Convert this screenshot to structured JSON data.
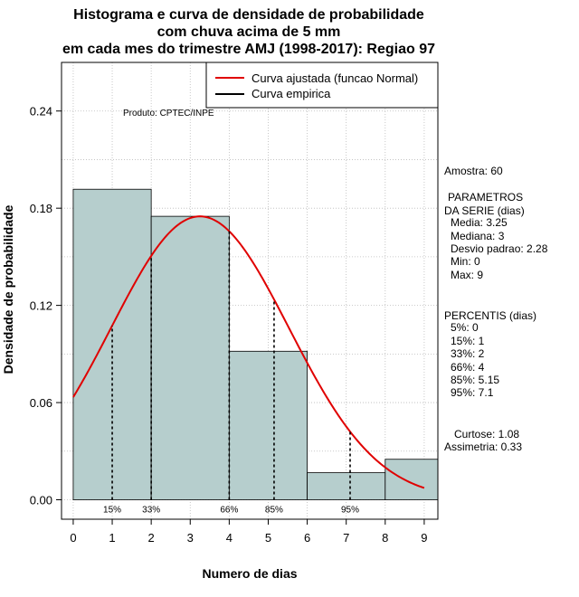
{
  "title_lines": [
    "Histograma e curva de densidade de probabilidade",
    "com chuva acima de 5 mm",
    "em cada mes do trimestre AMJ (1998-2017): Regiao 97"
  ],
  "product_label": "Produto: CPTEC/INPE",
  "legend": {
    "fitted_label": "Curva ajustada (funcao Normal)",
    "empirical_label": "Curva empirica"
  },
  "stats": {
    "amostra": "Amostra: 60",
    "params_title_1": "PARAMETROS",
    "params_title_2": "DA SERIE (dias)",
    "params": [
      "Media: 3.25",
      "Mediana: 3",
      "Desvio padrao: 2.28",
      "Min: 0",
      "Max: 9"
    ],
    "perc_title": "PERCENTIS (dias)",
    "percentis": [
      "5%: 0",
      "15%: 1",
      "33%: 2",
      "66%: 4",
      "85%: 5.15",
      "95%: 7.1"
    ],
    "curtose": "Curtose: 1.08",
    "assimetria": "Assimetria: 0.33"
  },
  "colors": {
    "bar_fill": "#b6cecd",
    "fitted_curve": "#e00000",
    "grid": "#bbbbbb"
  },
  "chart_data": {
    "type": "bar",
    "title": "Histograma e curva de densidade de probabilidade com chuva acima de 5 mm em cada mes do trimestre AMJ (1998-2017): Regiao 97",
    "xlabel": "Numero de dias",
    "ylabel": "Densidade de probabilidade",
    "xlim": [
      -0.3,
      9.35
    ],
    "ylim": [
      -0.012,
      0.27
    ],
    "x_ticks": [
      0,
      1,
      2,
      3,
      4,
      5,
      6,
      7,
      8,
      9
    ],
    "y_ticks": [
      0.0,
      0.06,
      0.12,
      0.18,
      0.24
    ],
    "y_tick_labels": [
      "0.00",
      "0.06",
      "0.12",
      "0.18",
      "0.24"
    ],
    "bins": [
      {
        "x0": 0,
        "x1": 2,
        "density": 0.1917
      },
      {
        "x0": 2,
        "x1": 4,
        "density": 0.175
      },
      {
        "x0": 4,
        "x1": 6,
        "density": 0.0917
      },
      {
        "x0": 6,
        "x1": 8,
        "density": 0.0167
      },
      {
        "x0": 8,
        "x1": 9.35,
        "density": 0.025
      }
    ],
    "fitted_normal": {
      "mean": 3.25,
      "sd": 2.28,
      "x_from": 0,
      "x_to": 9
    },
    "percentile_lines": [
      {
        "label": "15%",
        "x": 1
      },
      {
        "label": "33%",
        "x": 2
      },
      {
        "label": "66%",
        "x": 4
      },
      {
        "label": "85%",
        "x": 5.15
      },
      {
        "label": "95%",
        "x": 7.1
      }
    ]
  }
}
